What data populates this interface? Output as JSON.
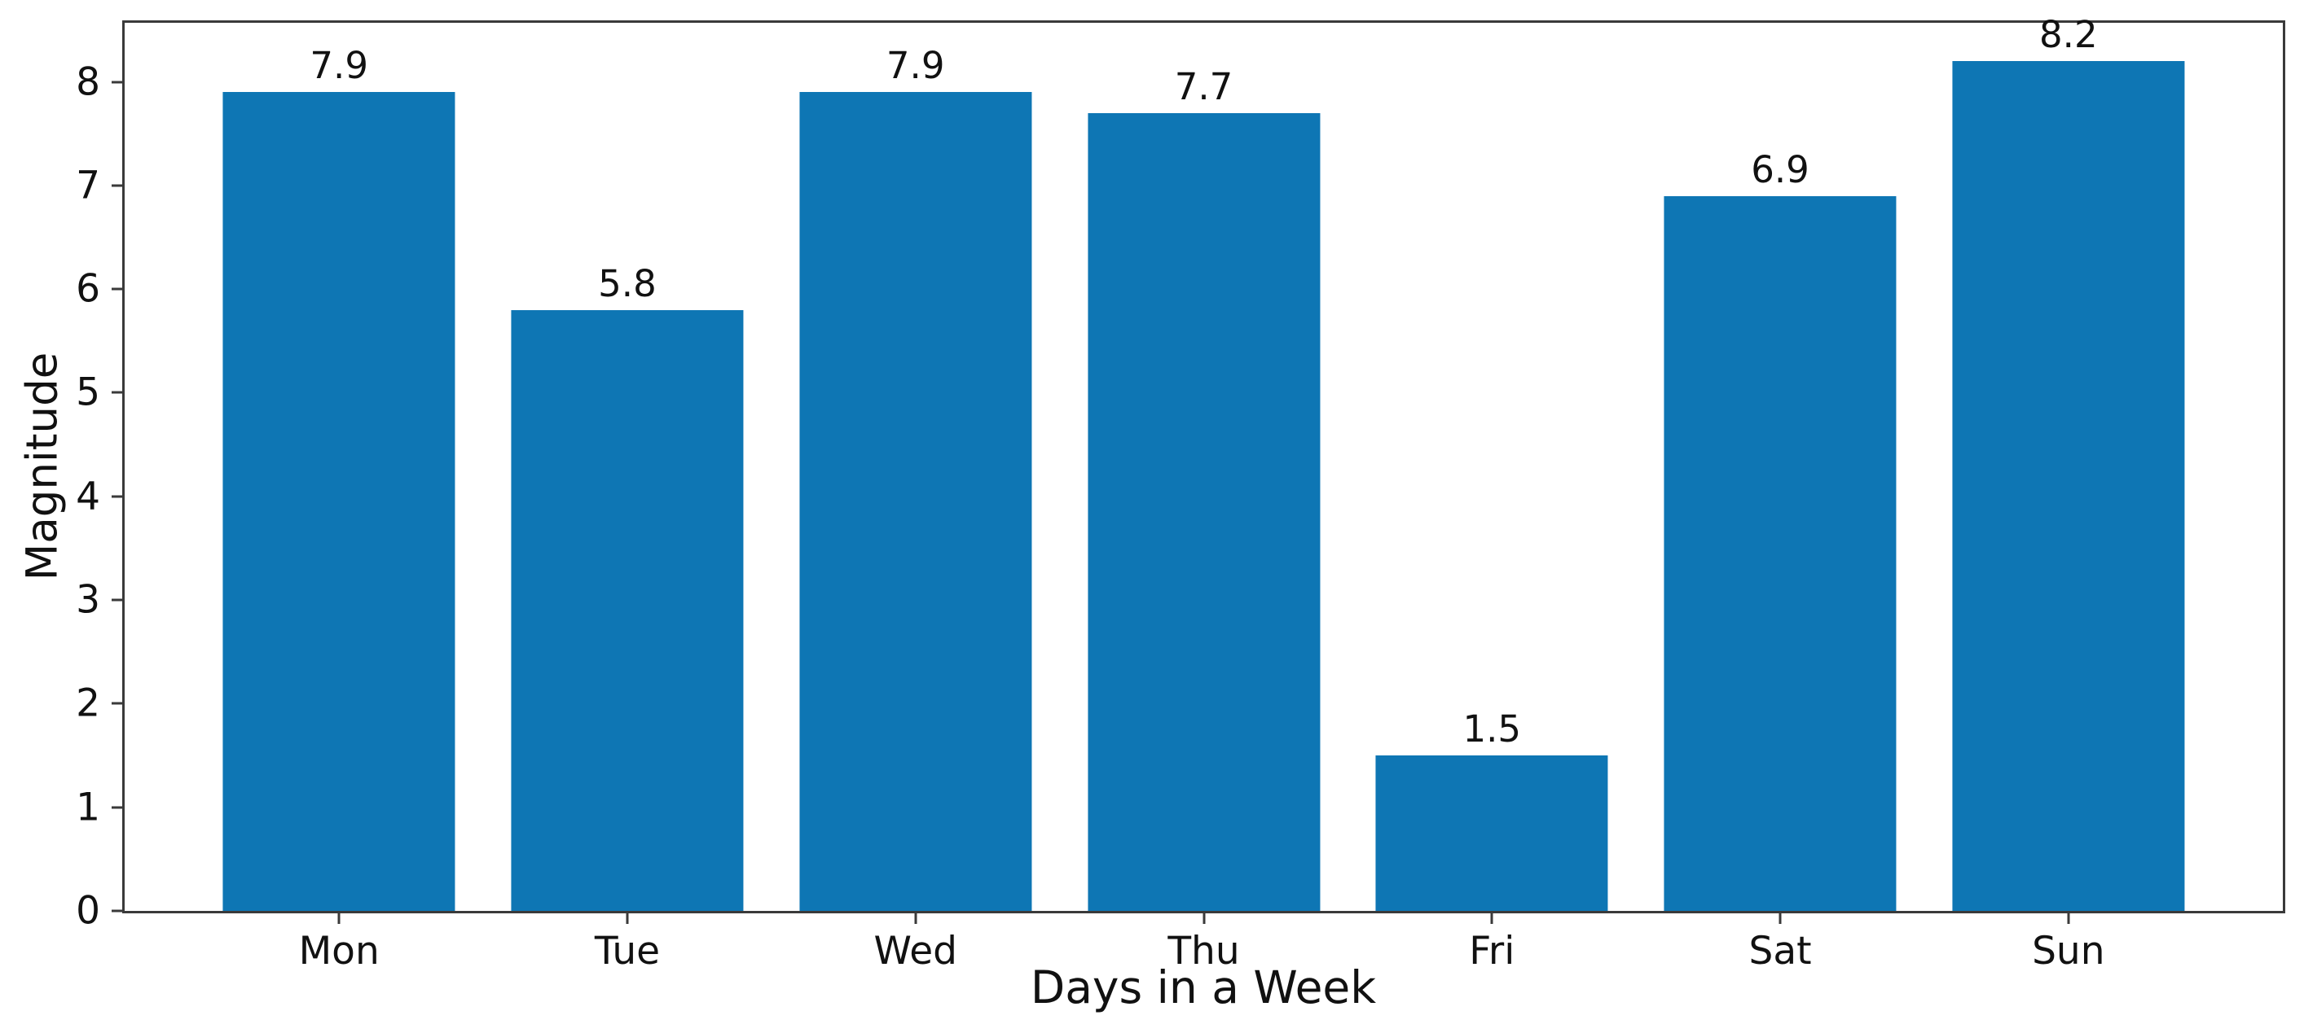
{
  "chart_data": {
    "type": "bar",
    "categories": [
      "Mon",
      "Tue",
      "Wed",
      "Thu",
      "Fri",
      "Sat",
      "Sun"
    ],
    "values": [
      7.9,
      5.8,
      7.9,
      7.7,
      1.5,
      6.9,
      8.2
    ],
    "value_labels": [
      "7.9",
      "5.8",
      "7.9",
      "7.7",
      "1.5",
      "6.9",
      "8.2"
    ],
    "title": "",
    "xlabel": "Days in a Week",
    "ylabel": "Magnitude",
    "yticks": [
      0,
      1,
      2,
      3,
      4,
      5,
      6,
      7,
      8
    ],
    "ylim": [
      0,
      8.57
    ],
    "xlim": [
      -0.744,
      6.744
    ],
    "bar_width": 0.806,
    "bar_color": "#0e76b4",
    "grid": false,
    "legend": null
  }
}
